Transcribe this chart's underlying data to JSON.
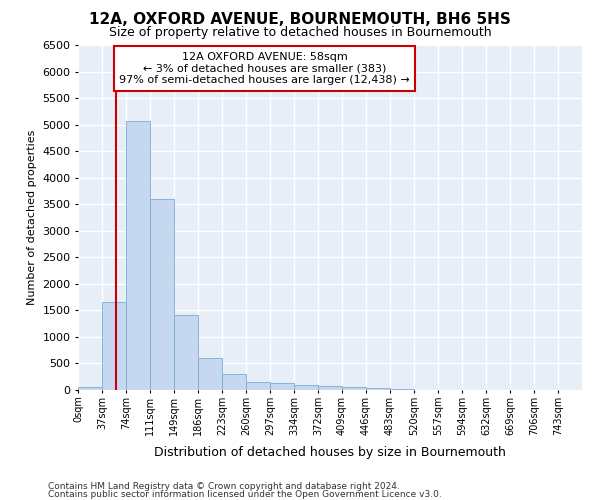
{
  "title": "12A, OXFORD AVENUE, BOURNEMOUTH, BH6 5HS",
  "subtitle": "Size of property relative to detached houses in Bournemouth",
  "xlabel": "Distribution of detached houses by size in Bournemouth",
  "ylabel": "Number of detached properties",
  "footnote1": "Contains HM Land Registry data © Crown copyright and database right 2024.",
  "footnote2": "Contains public sector information licensed under the Open Government Licence v3.0.",
  "bar_labels": [
    "0sqm",
    "37sqm",
    "74sqm",
    "111sqm",
    "149sqm",
    "186sqm",
    "223sqm",
    "260sqm",
    "297sqm",
    "334sqm",
    "372sqm",
    "409sqm",
    "446sqm",
    "483sqm",
    "520sqm",
    "557sqm",
    "594sqm",
    "632sqm",
    "669sqm",
    "706sqm",
    "743sqm"
  ],
  "bar_values": [
    60,
    1650,
    5060,
    3600,
    1420,
    610,
    300,
    155,
    130,
    100,
    75,
    50,
    30,
    12,
    8,
    5,
    3,
    2,
    1,
    1,
    1
  ],
  "bar_color": "#c5d8f0",
  "bar_edge_color": "#7aadd4",
  "plot_bg_color": "#e8eef8",
  "fig_bg_color": "#ffffff",
  "grid_color": "#ffffff",
  "annotation_text": "12A OXFORD AVENUE: 58sqm\n← 3% of detached houses are smaller (383)\n97% of semi-detached houses are larger (12,438) →",
  "annotation_box_color": "#ffffff",
  "annotation_box_edge": "#cc0000",
  "vline_x": 58,
  "vline_color": "#cc0000",
  "ylim": [
    0,
    6500
  ],
  "bin_width": 37,
  "num_bins": 21
}
